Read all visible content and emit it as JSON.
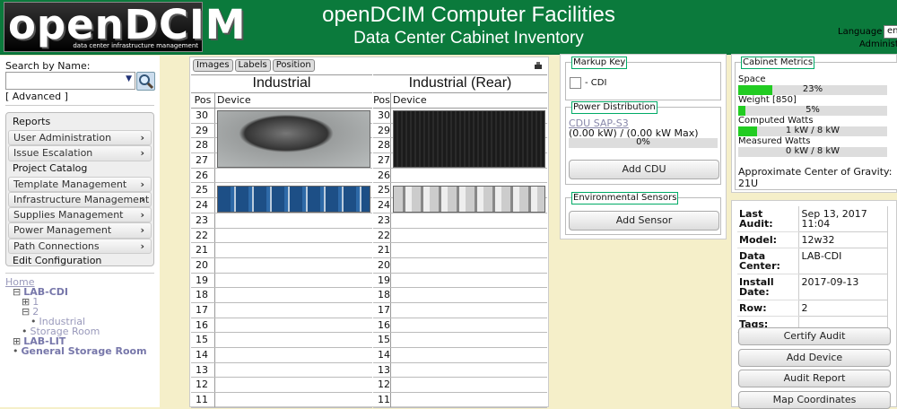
{
  "header": {
    "logo": "openDCIM",
    "logo_tagline": "data center infrastructure management",
    "title": "openDCIM Computer Facilities",
    "subtitle": "Data Center Cabinet Inventory",
    "language_label": "Language",
    "language": "en",
    "user": "Administrator"
  },
  "sidebar": {
    "search_label": "Search by Name:",
    "advanced": "[ Advanced ]",
    "menu": [
      {
        "label": "Reports",
        "submenu": false
      },
      {
        "label": "User Administration",
        "submenu": true
      },
      {
        "label": "Issue Escalation",
        "submenu": true
      },
      {
        "label": "Project Catalog",
        "submenu": false
      },
      {
        "label": "Template Management",
        "submenu": true
      },
      {
        "label": "Infrastructure Management",
        "submenu": true
      },
      {
        "label": "Supplies Management",
        "submenu": true
      },
      {
        "label": "Power Management",
        "submenu": true
      },
      {
        "label": "Path Connections",
        "submenu": true
      },
      {
        "label": "Edit Configuration",
        "submenu": false
      }
    ],
    "tree": [
      {
        "label": "Home",
        "level": 0,
        "icon": "none"
      },
      {
        "label": "LAB-CDI",
        "level": 1,
        "icon": "minus"
      },
      {
        "label": "1",
        "level": 2,
        "icon": "plus"
      },
      {
        "label": "2",
        "level": 2,
        "icon": "minus"
      },
      {
        "label": "Industrial",
        "level": 3,
        "icon": "bullet"
      },
      {
        "label": "Storage Room",
        "level": 2,
        "icon": "bullet"
      },
      {
        "label": "LAB-LIT",
        "level": 1,
        "icon": "plus"
      },
      {
        "label": "General Storage Room",
        "level": 1,
        "icon": "bullet"
      }
    ]
  },
  "cabinet": {
    "toolbar": [
      "Images",
      "Labels",
      "Position"
    ],
    "views": [
      {
        "title": "Industrial",
        "pos_header": "Pos",
        "device_header": "Device",
        "positions": [
          30,
          29,
          28,
          27,
          26,
          25,
          24,
          23,
          22,
          21,
          20,
          19,
          18,
          17,
          16,
          15,
          14,
          13,
          12,
          11
        ]
      },
      {
        "title": "Industrial (Rear)",
        "pos_header": "Pos",
        "device_header": "Device",
        "positions": [
          30,
          29,
          28,
          27,
          26,
          25,
          24,
          23,
          22,
          21,
          20,
          19,
          18,
          17,
          16,
          15,
          14,
          13,
          12,
          11
        ]
      }
    ]
  },
  "markup_key": {
    "legend": "Markup Key",
    "item": "- CDI"
  },
  "power": {
    "legend": "Power Distribution",
    "cdu": "CDU SAP-S3",
    "load": "(0.00 kW) / (0.00 kW Max)",
    "percent_label": "0%",
    "percent": 0,
    "button": "Add CDU"
  },
  "sensors": {
    "legend": "Environmental Sensors",
    "button": "Add Sensor"
  },
  "metrics": {
    "legend": "Cabinet Metrics",
    "items": [
      {
        "label": "Space",
        "value": "23%",
        "fill": 23
      },
      {
        "label": "Weight [850]",
        "value": "5%",
        "fill": 5
      },
      {
        "label": "Computed Watts",
        "value": "1 kW / 8 kW",
        "fill": 12.5
      },
      {
        "label": "Measured Watts",
        "value": "0 kW / 8 kW",
        "fill": 0
      }
    ],
    "gravity": "Approximate Center of Gravity: 21U"
  },
  "audit": {
    "rows": [
      {
        "label": "Last Audit:",
        "value": "Sep 13, 2017 11:04"
      },
      {
        "label": "Model:",
        "value": "12w32"
      },
      {
        "label": "Data Center:",
        "value": "LAB-CDI"
      },
      {
        "label": "Install Date:",
        "value": "2017-09-13"
      },
      {
        "label": "Row:",
        "value": "2"
      },
      {
        "label": "Tags:"
      }
    ],
    "buttons": [
      "Certify Audit",
      "Add Device",
      "Audit Report",
      "Map Coordinates"
    ]
  }
}
